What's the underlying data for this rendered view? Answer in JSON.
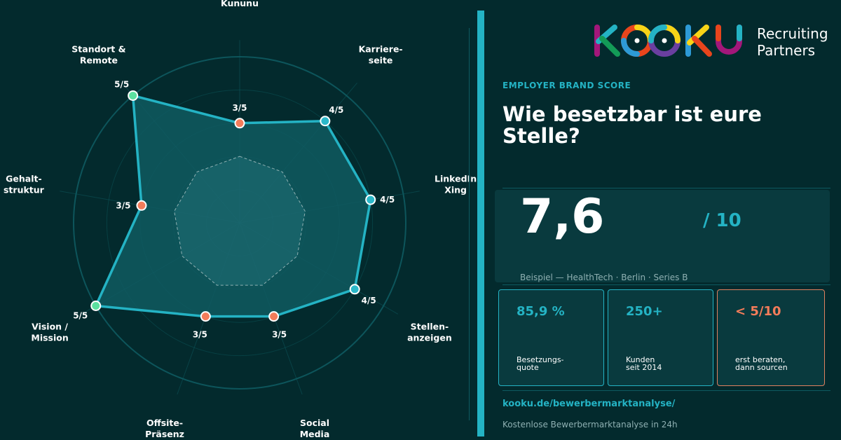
{
  "chart_data": {
    "type": "radar",
    "categories": [
      "Kununu",
      "Karriere-\nseite",
      "LinkedIn\nXing",
      "Stellen-\nanzeigen",
      "Social\nMedia",
      "Offsite-\nPräsenz",
      "Vision /\nMission",
      "Gehalt-\nstruktur",
      "Standort &\nRemote"
    ],
    "values": [
      3,
      4,
      4,
      4,
      3,
      3,
      5,
      3,
      5
    ],
    "value_labels": [
      "3/5",
      "4/5",
      "4/5",
      "4/5",
      "3/5",
      "3/5",
      "5/5",
      "3/5",
      "5/5"
    ],
    "benchmark": [
      2,
      2,
      2,
      2,
      2,
      2,
      2,
      2,
      2
    ],
    "rlim": [
      0,
      5
    ],
    "grid": true,
    "colors": {
      "line": "#24b3c4",
      "fill": "#0f5a60",
      "score3": "#f47c5a",
      "score4": "#2bb8c9",
      "score5": "#5ce0a0",
      "grid": "#0e5a60"
    }
  },
  "brand": {
    "logo_text": "KOOKU",
    "tagline_1": "Recruiting",
    "tagline_2": "Partners"
  },
  "eyebrow": "EMPLOYER BRAND SCORE",
  "headline": "Wie besetzbar ist eure Stelle?",
  "score": {
    "value": "7,6",
    "max": "/ 10",
    "subtitle": "Beispiel — HealthTech · Berlin · Series B"
  },
  "kpis": [
    {
      "value": "85,9 %",
      "label": "Besetzungs-\nquote"
    },
    {
      "value": "250+",
      "label": "Kunden\nseit 2014"
    },
    {
      "value": "< 5/10",
      "label": "erst beraten,\ndann sourcen"
    }
  ],
  "link": "kooku.de/bewerbermarktanalyse/",
  "footer": "Kostenlose Bewerbermarktanalyse in 24h",
  "accent": "#24b3c4",
  "background": "#032a2d"
}
